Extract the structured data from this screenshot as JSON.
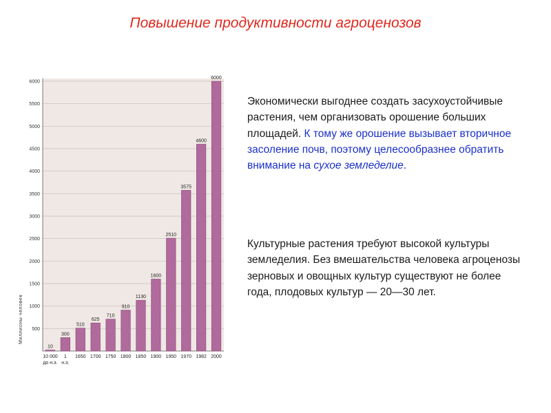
{
  "title": "Повышение продуктивности агроценозов",
  "paragraph1": {
    "plain": "Экономически выгоднее создать засухоустойчивые растения, чем организовать орошение больших площадей.",
    "highlight_start": " К тому же орошение вызывает вторичное засоление почв, поэтому целесообразнее обратить внимание на ",
    "highlight_italic": "сухое земледелие",
    "highlight_end": "."
  },
  "paragraph2": "Культурные растения требуют высокой культуры земледелия. Без вмешательства человека агроценозы зерновых и овощных культур существуют не более года, плодовых культур — 20—30 лет.",
  "colors": {
    "title": "#e0281e",
    "bar": "#b06a9c",
    "bar_dark": "#8a4a7a",
    "highlight_text": "#1a30c8"
  },
  "chart_data": {
    "type": "bar",
    "ylabel": "Миллионы человек",
    "ylim": [
      0,
      6000
    ],
    "yticks": [
      500,
      1000,
      1500,
      2000,
      2500,
      3000,
      3500,
      4000,
      4500,
      5000,
      5500,
      6000
    ],
    "categories": [
      {
        "line1": "10 000",
        "line2": "до н.э."
      },
      {
        "line1": "1",
        "line2": "н.э."
      },
      {
        "line1": "1650",
        "line2": ""
      },
      {
        "line1": "1700",
        "line2": ""
      },
      {
        "line1": "1750",
        "line2": ""
      },
      {
        "line1": "1800",
        "line2": ""
      },
      {
        "line1": "1850",
        "line2": ""
      },
      {
        "line1": "1900",
        "line2": ""
      },
      {
        "line1": "1950",
        "line2": ""
      },
      {
        "line1": "1970",
        "line2": ""
      },
      {
        "line1": "1982",
        "line2": ""
      },
      {
        "line1": "2000",
        "line2": ""
      }
    ],
    "values": [
      10,
      300,
      510,
      625,
      710,
      910,
      1130,
      1600,
      2510,
      3575,
      4600,
      6000
    ],
    "value_labels": [
      "10",
      "300",
      "510",
      "625",
      "710",
      "910",
      "1130",
      "1600",
      "2510",
      "3575",
      "4600",
      "6000"
    ],
    "grid": true
  }
}
